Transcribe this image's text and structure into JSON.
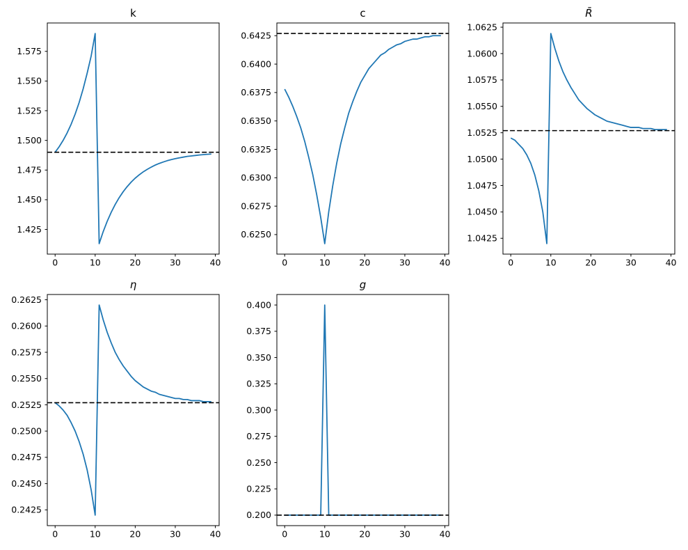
{
  "figure": {
    "background": "#ffffff",
    "rows": 2,
    "cols": 3,
    "empty_cell": "row2-col3",
    "line_color": "#1f77b4",
    "steady_state_color": "#000000",
    "steady_state_style": "dashed"
  },
  "chart_data": [
    {
      "type": "line",
      "title": "k",
      "title_italic": false,
      "xlabel": "",
      "ylabel": "",
      "grid": false,
      "legend": null,
      "xlim": [
        -1.95,
        40.95
      ],
      "ylim": [
        1.4042,
        1.5989
      ],
      "xtick_values": [
        0,
        10,
        20,
        30,
        40
      ],
      "xtick_labels": [
        "0",
        "10",
        "20",
        "30",
        "40"
      ],
      "ytick_values": [
        1.425,
        1.45,
        1.475,
        1.5,
        1.525,
        1.55,
        1.575
      ],
      "ytick_labels": [
        "1.425",
        "1.450",
        "1.475",
        "1.500",
        "1.525",
        "1.550",
        "1.575"
      ],
      "steady_state": 1.49,
      "x": [
        0,
        1,
        2,
        3,
        4,
        5,
        6,
        7,
        8,
        9,
        10,
        11,
        12,
        13,
        14,
        15,
        16,
        17,
        18,
        19,
        20,
        21,
        22,
        23,
        24,
        25,
        26,
        27,
        28,
        29,
        30,
        31,
        32,
        33,
        34,
        35,
        36,
        37,
        38,
        39
      ],
      "values": [
        1.49,
        1.4946,
        1.5,
        1.5063,
        1.5136,
        1.5221,
        1.5319,
        1.5434,
        1.5566,
        1.5711,
        1.59,
        1.413,
        1.4231,
        1.4318,
        1.4394,
        1.446,
        1.4518,
        1.4568,
        1.4611,
        1.4649,
        1.4682,
        1.471,
        1.4735,
        1.4756,
        1.4775,
        1.4792,
        1.4806,
        1.4818,
        1.4829,
        1.4838,
        1.4846,
        1.4853,
        1.4859,
        1.4865,
        1.4869,
        1.4873,
        1.4877,
        1.488,
        1.4883,
        1.4885
      ]
    },
    {
      "type": "line",
      "title": "c",
      "title_italic": false,
      "xlabel": "",
      "ylabel": "",
      "grid": false,
      "legend": null,
      "xlim": [
        -1.95,
        40.95
      ],
      "ylim": [
        0.62328,
        0.64362
      ],
      "xtick_values": [
        0,
        10,
        20,
        30,
        40
      ],
      "xtick_labels": [
        "0",
        "10",
        "20",
        "30",
        "40"
      ],
      "ytick_values": [
        0.625,
        0.6275,
        0.63,
        0.6325,
        0.635,
        0.6375,
        0.64,
        0.6425
      ],
      "ytick_labels": [
        "0.6250",
        "0.6275",
        "0.6300",
        "0.6325",
        "0.6350",
        "0.6375",
        "0.6400",
        "0.6425"
      ],
      "steady_state": 0.6427,
      "x": [
        0,
        1,
        2,
        3,
        4,
        5,
        6,
        7,
        8,
        9,
        10,
        11,
        12,
        13,
        14,
        15,
        16,
        17,
        18,
        19,
        20,
        21,
        22,
        23,
        24,
        25,
        26,
        27,
        28,
        29,
        30,
        31,
        32,
        33,
        34,
        35,
        36,
        37,
        38,
        39
      ],
      "values": [
        0.6378,
        0.6371,
        0.6363,
        0.6354,
        0.6344,
        0.6332,
        0.6318,
        0.6303,
        0.6285,
        0.6265,
        0.6242,
        0.627,
        0.6293,
        0.6313,
        0.633,
        0.6344,
        0.6357,
        0.6367,
        0.6376,
        0.6384,
        0.639,
        0.6396,
        0.64,
        0.6404,
        0.6408,
        0.641,
        0.6413,
        0.6415,
        0.6417,
        0.6418,
        0.642,
        0.6421,
        0.6422,
        0.6422,
        0.6423,
        0.6424,
        0.6424,
        0.6425,
        0.6425,
        0.6425
      ]
    },
    {
      "type": "line",
      "title": "R̄",
      "title_italic": true,
      "xlabel": "",
      "ylabel": "",
      "grid": false,
      "legend": null,
      "xlim": [
        -1.95,
        40.95
      ],
      "ylim": [
        1.041,
        1.0629
      ],
      "xtick_values": [
        0,
        10,
        20,
        30,
        40
      ],
      "xtick_labels": [
        "0",
        "10",
        "20",
        "30",
        "40"
      ],
      "ytick_values": [
        1.0425,
        1.045,
        1.0475,
        1.05,
        1.0525,
        1.055,
        1.0575,
        1.06,
        1.0625
      ],
      "ytick_labels": [
        "1.0425",
        "1.0450",
        "1.0475",
        "1.0500",
        "1.0525",
        "1.0550",
        "1.0575",
        "1.0600",
        "1.0625"
      ],
      "steady_state": 1.0527,
      "x": [
        0,
        1,
        2,
        3,
        4,
        5,
        6,
        7,
        8,
        9,
        10,
        11,
        12,
        13,
        14,
        15,
        16,
        17,
        18,
        19,
        20,
        21,
        22,
        23,
        24,
        25,
        26,
        27,
        28,
        29,
        30,
        31,
        32,
        33,
        34,
        35,
        36,
        37,
        38,
        39
      ],
      "values": [
        1.052,
        1.0518,
        1.0514,
        1.051,
        1.0504,
        1.0496,
        1.0485,
        1.047,
        1.045,
        1.042,
        1.0619,
        1.0605,
        1.0593,
        1.0583,
        1.0575,
        1.0568,
        1.0562,
        1.0556,
        1.0552,
        1.0548,
        1.0545,
        1.0542,
        1.054,
        1.0538,
        1.0536,
        1.0535,
        1.0534,
        1.0533,
        1.0532,
        1.0531,
        1.053,
        1.053,
        1.053,
        1.0529,
        1.0529,
        1.0529,
        1.0528,
        1.0528,
        1.0528,
        1.0528
      ]
    },
    {
      "type": "line",
      "title": "η",
      "title_italic": true,
      "xlabel": "",
      "ylabel": "",
      "grid": false,
      "legend": null,
      "xlim": [
        -1.95,
        40.95
      ],
      "ylim": [
        0.241,
        0.263
      ],
      "xtick_values": [
        0,
        10,
        20,
        30,
        40
      ],
      "xtick_labels": [
        "0",
        "10",
        "20",
        "30",
        "40"
      ],
      "ytick_values": [
        0.2425,
        0.245,
        0.2475,
        0.25,
        0.2525,
        0.255,
        0.2575,
        0.26,
        0.2625
      ],
      "ytick_labels": [
        "0.2425",
        "0.2450",
        "0.2475",
        "0.2500",
        "0.2525",
        "0.2550",
        "0.2575",
        "0.2600",
        "0.2625"
      ],
      "steady_state": 0.2527,
      "x": [
        0,
        1,
        2,
        3,
        4,
        5,
        6,
        7,
        8,
        9,
        10,
        11,
        12,
        13,
        14,
        15,
        16,
        17,
        18,
        19,
        20,
        21,
        22,
        23,
        24,
        25,
        26,
        27,
        28,
        29,
        30,
        31,
        32,
        33,
        34,
        35,
        36,
        37,
        38,
        39
      ],
      "values": [
        0.2527,
        0.2524,
        0.252,
        0.2515,
        0.2508,
        0.25,
        0.249,
        0.2478,
        0.2463,
        0.2444,
        0.242,
        0.262,
        0.2606,
        0.2594,
        0.2584,
        0.2575,
        0.2568,
        0.2562,
        0.2557,
        0.2552,
        0.2548,
        0.2545,
        0.2542,
        0.254,
        0.2538,
        0.2537,
        0.2535,
        0.2534,
        0.2533,
        0.2532,
        0.2531,
        0.2531,
        0.253,
        0.253,
        0.2529,
        0.2529,
        0.2529,
        0.2528,
        0.2528,
        0.2528
      ]
    },
    {
      "type": "line",
      "title": "g",
      "title_italic": true,
      "xlabel": "",
      "ylabel": "",
      "grid": false,
      "legend": null,
      "xlim": [
        -1.95,
        40.95
      ],
      "ylim": [
        0.19,
        0.41
      ],
      "xtick_values": [
        0,
        10,
        20,
        30,
        40
      ],
      "xtick_labels": [
        "0",
        "10",
        "20",
        "30",
        "40"
      ],
      "ytick_values": [
        0.2,
        0.225,
        0.25,
        0.275,
        0.3,
        0.325,
        0.35,
        0.375,
        0.4
      ],
      "ytick_labels": [
        "0.200",
        "0.225",
        "0.250",
        "0.275",
        "0.300",
        "0.325",
        "0.350",
        "0.375",
        "0.400"
      ],
      "steady_state": 0.2,
      "x": [
        0,
        1,
        2,
        3,
        4,
        5,
        6,
        7,
        8,
        9,
        10,
        11,
        12,
        13,
        14,
        15,
        16,
        17,
        18,
        19,
        20,
        21,
        22,
        23,
        24,
        25,
        26,
        27,
        28,
        29,
        30,
        31,
        32,
        33,
        34,
        35,
        36,
        37,
        38,
        39
      ],
      "values": [
        0.2,
        0.2,
        0.2,
        0.2,
        0.2,
        0.2,
        0.2,
        0.2,
        0.2,
        0.2,
        0.4,
        0.2,
        0.2,
        0.2,
        0.2,
        0.2,
        0.2,
        0.2,
        0.2,
        0.2,
        0.2,
        0.2,
        0.2,
        0.2,
        0.2,
        0.2,
        0.2,
        0.2,
        0.2,
        0.2,
        0.2,
        0.2,
        0.2,
        0.2,
        0.2,
        0.2,
        0.2,
        0.2,
        0.2,
        0.2
      ]
    }
  ]
}
